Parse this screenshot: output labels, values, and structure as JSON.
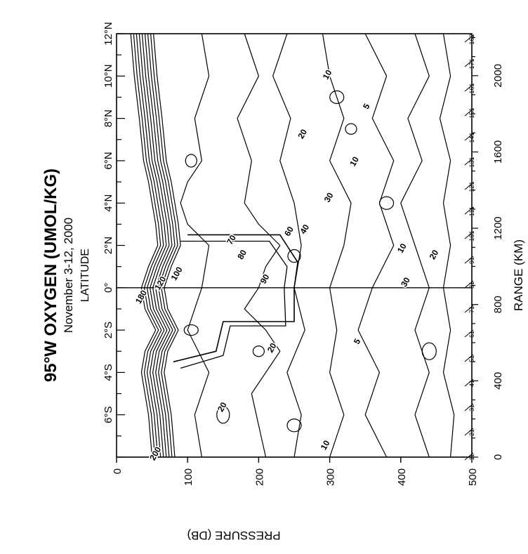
{
  "chart_data": {
    "type": "contour",
    "title": "95°W OXYGEN (UMOL/KG)",
    "subtitle": "November 3-12, 2000",
    "x_axis": {
      "label": "PRESSURE (DB)",
      "range": [
        0,
        500
      ],
      "ticks": [
        0,
        100,
        200,
        300,
        400,
        500
      ]
    },
    "latitude_axis": {
      "label": "LATITUDE",
      "range": [
        -8,
        12
      ],
      "ticks": [
        {
          "value": -6,
          "label": "6°S"
        },
        {
          "value": -4,
          "label": "4°S"
        },
        {
          "value": -2,
          "label": "2°S"
        },
        {
          "value": 0,
          "label": "0°"
        },
        {
          "value": 2,
          "label": "2°N"
        },
        {
          "value": 4,
          "label": "4°N"
        },
        {
          "value": 6,
          "label": "6°N"
        },
        {
          "value": 8,
          "label": "8°N"
        },
        {
          "value": 10,
          "label": "10°N"
        },
        {
          "value": 12,
          "label": "12°N"
        }
      ]
    },
    "range_axis": {
      "label": "RANGE (KM)",
      "range": [
        0,
        2220
      ],
      "ticks": [
        0,
        400,
        800,
        1200,
        1600,
        2000
      ]
    },
    "station_labels": [
      "162",
      "171",
      "161",
      "151",
      "141",
      "131",
      "121",
      "111",
      "101",
      "91",
      "81",
      "71",
      "61",
      "51",
      "41",
      "31",
      "21",
      "11"
    ],
    "contour_labels": [
      {
        "text": "10",
        "p": 300,
        "lat": 10.0
      },
      {
        "text": "5",
        "p": 355,
        "lat": 8.5
      },
      {
        "text": "20",
        "p": 265,
        "lat": 7.2
      },
      {
        "text": "10",
        "p": 338,
        "lat": 5.9
      },
      {
        "text": "30",
        "p": 302,
        "lat": 4.2
      },
      {
        "text": "40",
        "p": 268,
        "lat": 2.7
      },
      {
        "text": "60",
        "p": 246,
        "lat": 2.6
      },
      {
        "text": "70",
        "p": 165,
        "lat": 2.2
      },
      {
        "text": "80",
        "p": 180,
        "lat": 1.5
      },
      {
        "text": "100",
        "p": 88,
        "lat": 0.6
      },
      {
        "text": "90",
        "p": 212,
        "lat": 0.35
      },
      {
        "text": "120",
        "p": 65,
        "lat": 0.15
      },
      {
        "text": "180",
        "p": 38,
        "lat": -0.5
      },
      {
        "text": "10",
        "p": 405,
        "lat": 1.8
      },
      {
        "text": "20",
        "p": 450,
        "lat": 1.5
      },
      {
        "text": "30",
        "p": 410,
        "lat": 0.2
      },
      {
        "text": "5",
        "p": 342,
        "lat": -2.6
      },
      {
        "text": "20",
        "p": 222,
        "lat": -2.9
      },
      {
        "text": "20",
        "p": 152,
        "lat": -5.7
      },
      {
        "text": "10",
        "p": 297,
        "lat": -7.5
      },
      {
        "text": "200",
        "p": 58,
        "lat": -7.9
      }
    ],
    "grid": false,
    "background": "#ffffff",
    "ink": "#000000"
  }
}
